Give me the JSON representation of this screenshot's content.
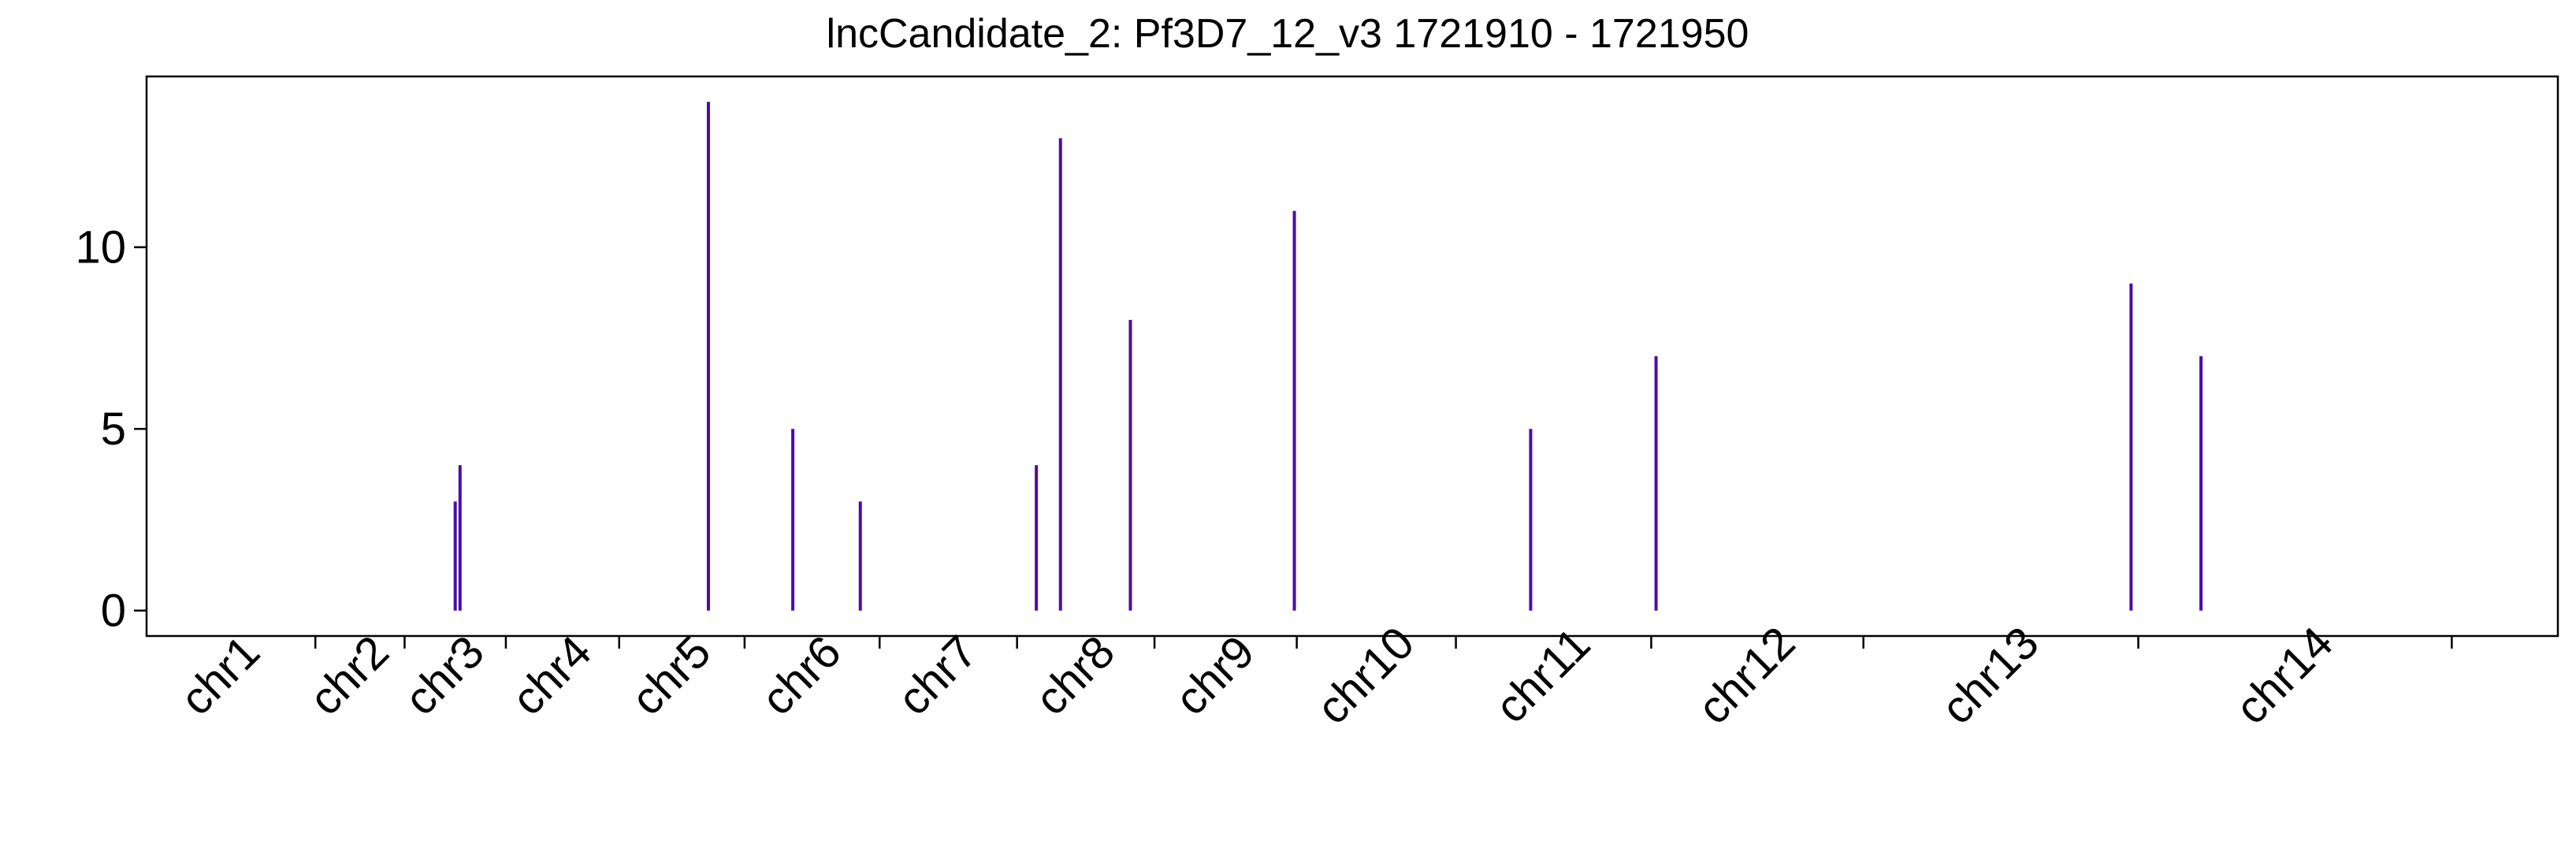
{
  "chart_data": {
    "type": "bar",
    "title": "lncCandidate_2: Pf3D7_12_v3 1721910 - 1721950",
    "xlabel": "",
    "ylabel": "",
    "ylim": [
      -0.7,
      14.7
    ],
    "yticks": [
      0,
      5,
      10
    ],
    "xlim": [
      0,
      1
    ],
    "color": "#4B0CA8",
    "grid": false,
    "legend": "none",
    "chromosomes": [
      {
        "label": "chr1",
        "start": 0.0,
        "end": 0.07
      },
      {
        "label": "chr2",
        "start": 0.07,
        "end": 0.107
      },
      {
        "label": "chr3",
        "start": 0.107,
        "end": 0.149
      },
      {
        "label": "chr4",
        "start": 0.149,
        "end": 0.196
      },
      {
        "label": "chr5",
        "start": 0.196,
        "end": 0.248
      },
      {
        "label": "chr6",
        "start": 0.248,
        "end": 0.304
      },
      {
        "label": "chr7",
        "start": 0.304,
        "end": 0.361
      },
      {
        "label": "chr8",
        "start": 0.361,
        "end": 0.418
      },
      {
        "label": "chr9",
        "start": 0.418,
        "end": 0.477
      },
      {
        "label": "chr10",
        "start": 0.477,
        "end": 0.543
      },
      {
        "label": "chr11",
        "start": 0.543,
        "end": 0.624
      },
      {
        "label": "chr12",
        "start": 0.624,
        "end": 0.712
      },
      {
        "label": "chr13",
        "start": 0.712,
        "end": 0.826
      },
      {
        "label": "chr14",
        "start": 0.826,
        "end": 0.956
      }
    ],
    "values": [
      {
        "x": 0.128,
        "y": 3
      },
      {
        "x": 0.13,
        "y": 4
      },
      {
        "x": 0.233,
        "y": 14
      },
      {
        "x": 0.268,
        "y": 5
      },
      {
        "x": 0.296,
        "y": 3
      },
      {
        "x": 0.369,
        "y": 4
      },
      {
        "x": 0.379,
        "y": 13
      },
      {
        "x": 0.408,
        "y": 8
      },
      {
        "x": 0.476,
        "y": 11
      },
      {
        "x": 0.574,
        "y": 5
      },
      {
        "x": 0.626,
        "y": 7
      },
      {
        "x": 0.823,
        "y": 9
      },
      {
        "x": 0.852,
        "y": 7
      }
    ]
  }
}
